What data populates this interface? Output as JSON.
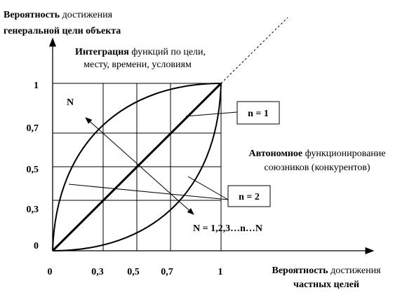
{
  "y_axis_title": {
    "bold": "Вероятность",
    "rest": " достижения",
    "line2": "генеральной цели объекта"
  },
  "integration": {
    "bold": "Интеграция",
    "rest": " функций по цели,",
    "line2": "месту,  времени, условиям"
  },
  "autonomous": {
    "bold": "Автономное",
    "rest": " функционирование",
    "line2": "союзников (конкурентов)"
  },
  "x_axis_title": {
    "bold": "Вероятность",
    "rest": " достижения",
    "line2": "частных целей"
  },
  "x_ticks": [
    "0",
    "0,3",
    "0,5",
    "0,7",
    "1"
  ],
  "y_ticks": [
    "0",
    "0,3",
    "0,5",
    "0,7",
    "1"
  ],
  "label_N": "N",
  "box_n1": "n = 1",
  "box_n2": "n = 2",
  "range_label": "N = 1,2,3…n…N"
}
